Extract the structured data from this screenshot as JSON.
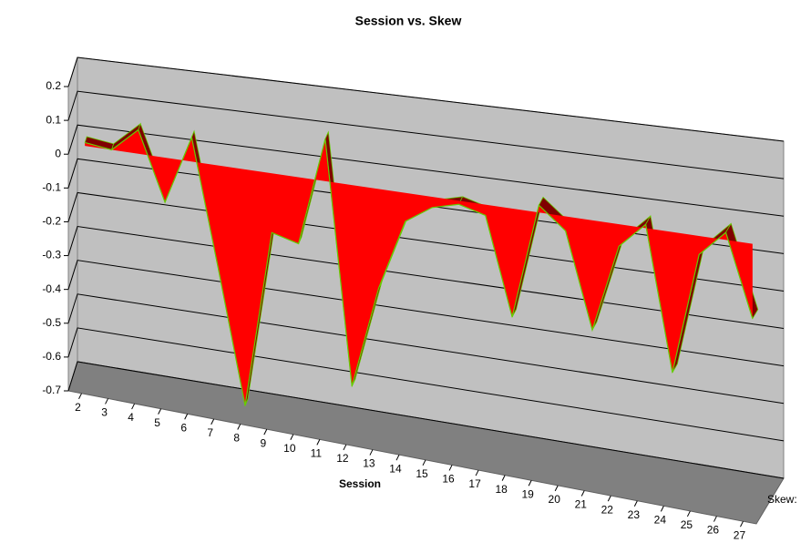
{
  "chart_data": {
    "type": "area3d",
    "title": "Session vs. Skew",
    "x_label": "Session",
    "categories": [
      "2",
      "3",
      "4",
      "5",
      "6",
      "7",
      "8",
      "9",
      "10",
      "11",
      "12",
      "13",
      "14",
      "15",
      "16",
      "17",
      "18",
      "19",
      "20",
      "21",
      "22",
      "23",
      "24",
      "25",
      "26",
      "27"
    ],
    "series": [
      {
        "name": "Skew:",
        "color": "#ff0000",
        "values": [
          0.01,
          0,
          0.07,
          -0.13,
          0.07,
          -0.3,
          -0.68,
          -0.17,
          -0.19,
          0.12,
          -0.57,
          -0.28,
          -0.08,
          -0.03,
          -0.01,
          -0.03,
          -0.3,
          0.02,
          -0.04,
          -0.3,
          -0.06,
          0.01,
          -0.38,
          -0.05,
          0.02,
          -0.2
        ]
      }
    ],
    "ylim": [
      -0.7,
      0.2
    ],
    "yticks": [
      0.2,
      0.1,
      0,
      -0.1,
      -0.2,
      -0.3,
      -0.4,
      -0.5,
      -0.6,
      -0.7
    ],
    "grid": true
  }
}
